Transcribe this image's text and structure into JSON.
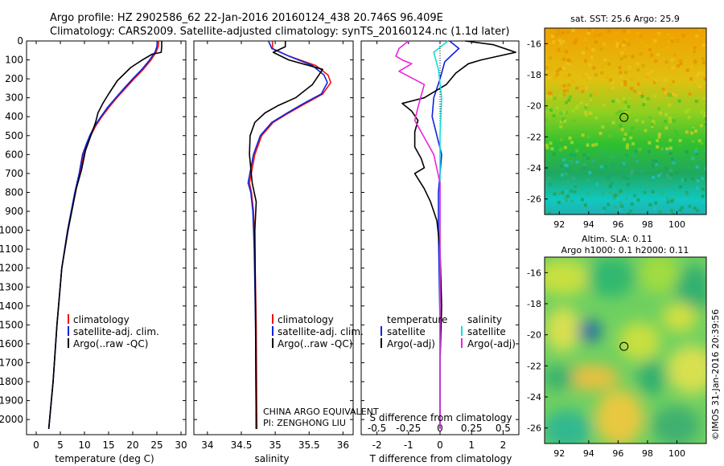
{
  "header": {
    "line1": "Argo profile: HZ 2902586_62 22-Jan-2016 20160124_438 20.746S 96.409E",
    "line2": "Climatology: CARS2009. Satellite-adjusted climatology: synTS_20160124.nc (1.1d later)"
  },
  "credit": "©IMOS 31-Jan-2016 20:39:56",
  "colors": {
    "climatology": "#ee1111",
    "satellite": "#1122dd",
    "argo": "#000000",
    "salinity_sat": "#11dddd",
    "salinity_argo": "#ee22dd"
  },
  "chart_data": [
    {
      "type": "line",
      "xlabel": "temperature (deg C)",
      "ylabel": "",
      "xlim": [
        -2,
        31
      ],
      "ylim": [
        2080,
        0
      ],
      "xticks": [
        "0",
        "5",
        "10",
        "15",
        "20",
        "25",
        "30"
      ],
      "yticks": [
        "0",
        "100",
        "200",
        "300",
        "400",
        "500",
        "600",
        "700",
        "800",
        "900",
        "1000",
        "1100",
        "1200",
        "1300",
        "1400",
        "1500",
        "1600",
        "1700",
        "1800",
        "1900",
        "2000"
      ],
      "legend": [
        "climatology",
        "satellite-adj. clim.",
        "Argo(..raw -QC)"
      ],
      "series": [
        {
          "name": "climatology",
          "color": "red",
          "x": [
            25.4,
            25.3,
            24.8,
            23.8,
            22.2,
            20.3,
            18.5,
            16.7,
            15.1,
            13.6,
            12.3,
            11.3,
            10.4,
            9.8,
            9.0,
            8.1,
            6.5,
            5.3,
            4.3,
            3.5,
            2.6
          ],
          "y": [
            0,
            30,
            60,
            100,
            150,
            200,
            250,
            300,
            350,
            400,
            450,
            500,
            550,
            600,
            700,
            800,
            1000,
            1200,
            1500,
            1800,
            2050
          ]
        },
        {
          "name": "satellite-adj. clim.",
          "color": "blue",
          "x": [
            25.1,
            25.0,
            24.6,
            23.5,
            21.9,
            20.0,
            18.2,
            16.5,
            14.8,
            13.4,
            12.1,
            11.1,
            10.3,
            9.6,
            8.9,
            8.0,
            6.5,
            5.3,
            4.3,
            3.5,
            2.6
          ],
          "y": [
            0,
            30,
            60,
            100,
            150,
            200,
            250,
            300,
            350,
            400,
            450,
            500,
            550,
            600,
            700,
            800,
            1000,
            1200,
            1500,
            1800,
            2050
          ]
        },
        {
          "name": "Argo(..raw -QC)",
          "color": "black",
          "x": [
            26.0,
            26.0,
            25.9,
            24.0,
            22.0,
            19.6,
            16.8,
            15.0,
            13.8,
            12.8,
            12.3,
            11.6,
            10.9,
            10.2,
            9.4,
            8.3,
            6.6,
            5.3,
            4.3,
            3.5,
            2.6
          ],
          "y": [
            0,
            30,
            60,
            70,
            100,
            140,
            210,
            280,
            330,
            380,
            430,
            480,
            530,
            580,
            680,
            780,
            1000,
            1200,
            1500,
            1800,
            2050
          ]
        }
      ]
    },
    {
      "type": "line",
      "xlabel": "salinity",
      "xlim": [
        33.8,
        36.15
      ],
      "ylim": [
        2080,
        0
      ],
      "xticks": [
        "34",
        "34.5",
        "35",
        "35.5",
        "36"
      ],
      "legend": [
        "climatology",
        "satellite-adj. clim.",
        "Argo(..raw -QC)"
      ],
      "annotation": [
        "CHINA ARGO EQUIVALENT",
        "PI: ZENGHONG LIU"
      ],
      "series": [
        {
          "name": "climatology",
          "color": "red",
          "x": [
            34.96,
            34.96,
            35.2,
            35.6,
            35.78,
            35.82,
            35.7,
            35.45,
            35.2,
            34.97,
            34.8,
            34.7,
            34.62,
            34.65,
            34.68,
            34.7,
            34.72,
            34.73
          ],
          "y": [
            0,
            40,
            80,
            130,
            180,
            220,
            280,
            330,
            380,
            430,
            500,
            600,
            750,
            800,
            900,
            1100,
            1500,
            2050
          ]
        },
        {
          "name": "satellite-adj. clim.",
          "color": "blue",
          "x": [
            34.9,
            34.95,
            35.2,
            35.55,
            35.72,
            35.77,
            35.68,
            35.42,
            35.18,
            34.95,
            34.78,
            34.68,
            34.6,
            34.64,
            34.67,
            34.69,
            34.71,
            34.72
          ],
          "y": [
            0,
            40,
            80,
            130,
            180,
            220,
            280,
            330,
            380,
            430,
            500,
            600,
            750,
            800,
            900,
            1100,
            1500,
            2050
          ]
        },
        {
          "name": "Argo(..raw -QC)",
          "color": "black",
          "x": [
            35.15,
            35.15,
            34.97,
            35.2,
            35.7,
            35.55,
            35.3,
            35.05,
            34.85,
            34.7,
            34.63,
            34.62,
            34.66,
            34.72,
            34.7,
            34.71,
            34.72
          ],
          "y": [
            0,
            30,
            60,
            100,
            150,
            230,
            300,
            340,
            380,
            430,
            500,
            600,
            750,
            850,
            1000,
            1500,
            2050
          ]
        }
      ]
    },
    {
      "type": "line",
      "xlabel": "T difference from climatology",
      "xlabel2": "S difference from climatology",
      "xlim": [
        -2.5,
        2.5
      ],
      "ylim": [
        2080,
        0
      ],
      "xticks": [
        "-2",
        "-1",
        "0",
        "1",
        "2"
      ],
      "xticks2": [
        "-0.5",
        "-0.25",
        "0",
        "0.25",
        "0.5"
      ],
      "legend_groups": [
        {
          "title": "temperature",
          "items": [
            "satellite",
            "Argo(-adj)"
          ]
        },
        {
          "title": "salinity",
          "items": [
            "satellite",
            "Argo(-adj)"
          ]
        }
      ],
      "series": [
        {
          "name": "temperature satellite",
          "color": "blue",
          "x": [
            0.3,
            0.6,
            0.4,
            0.15,
            0.0,
            -0.2,
            -0.25,
            -0.1,
            0.05,
            -0.05,
            -0.05,
            0.0,
            0.0
          ],
          "y": [
            0,
            40,
            70,
            110,
            200,
            300,
            400,
            500,
            600,
            800,
            1000,
            1500,
            2050
          ]
        },
        {
          "name": "temperature Argo(-adj)",
          "color": "black",
          "x": [
            0.8,
            1.7,
            2.4,
            1.3,
            0.9,
            0.5,
            0.2,
            -0.5,
            -1.2,
            -0.9,
            -0.7,
            -0.8,
            -0.8,
            -0.6,
            -0.5,
            -0.8,
            -0.5,
            -0.3,
            -0.1,
            0.0,
            0.05,
            0.0,
            0.0
          ],
          "y": [
            0,
            20,
            60,
            100,
            120,
            170,
            230,
            300,
            330,
            370,
            420,
            480,
            560,
            620,
            670,
            700,
            780,
            850,
            950,
            1100,
            1400,
            1700,
            2050
          ]
        },
        {
          "name": "salinity satellite",
          "color": "cyan",
          "x": [
            0.25,
            -0.2,
            -0.05,
            0.05,
            0.0,
            0.0,
            0.0,
            0.0
          ],
          "y": [
            0,
            60,
            150,
            300,
            500,
            800,
            1500,
            2050
          ]
        },
        {
          "name": "salinity Argo(-adj)",
          "color": "magenta",
          "x": [
            -1.0,
            -1.3,
            -1.4,
            -1.2,
            -0.9,
            -1.3,
            -0.5,
            -0.7,
            -0.8,
            -0.6,
            -0.2,
            0.0,
            0.0,
            0.0
          ],
          "y": [
            0,
            40,
            80,
            100,
            120,
            160,
            230,
            350,
            420,
            480,
            600,
            750,
            1500,
            2050
          ]
        }
      ]
    },
    {
      "type": "heatmap",
      "title": "sat. SST: 25.6 Argo: 25.9",
      "xlim": [
        91,
        102
      ],
      "ylim": [
        -27,
        -15
      ],
      "xticks": [
        "92",
        "94",
        "96",
        "98",
        "100"
      ],
      "yticks": [
        "-16",
        "-18",
        "-20",
        "-22",
        "-24",
        "-26"
      ],
      "marker": {
        "lon": 96.4,
        "lat": -20.75
      }
    },
    {
      "type": "heatmap",
      "title": "Altim. SLA: 0.11",
      "subtitle": "Argo h1000: 0.1 h2000: 0.11",
      "xlim": [
        91,
        102
      ],
      "ylim": [
        -27,
        -15
      ],
      "xticks": [
        "92",
        "94",
        "96",
        "98",
        "100"
      ],
      "yticks": [
        "-16",
        "-18",
        "-20",
        "-22",
        "-24",
        "-26"
      ],
      "marker": {
        "lon": 96.4,
        "lat": -20.75
      }
    }
  ]
}
